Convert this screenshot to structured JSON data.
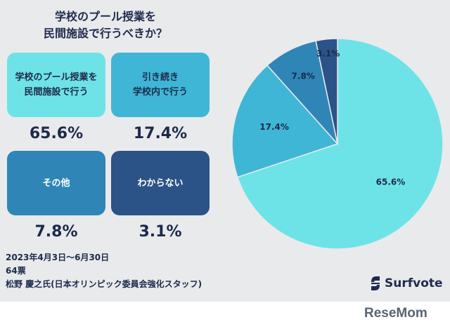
{
  "title_line1": "学校のプール授業を",
  "title_line2": "民間施設で行うべきか？",
  "cards": [
    {
      "label": "学校のプール授業を\n民間施設で行う",
      "pct": "65.6%",
      "bg": "#6ee3e7",
      "fg": "#1c2a4a"
    },
    {
      "label": "引き続き\n学校内で行う",
      "pct": "17.4%",
      "bg": "#3fb6d6",
      "fg": "#1c2a4a"
    },
    {
      "label": "その他",
      "pct": "7.8%",
      "bg": "#2f86b6",
      "fg": "#ffffff"
    },
    {
      "label": "わからない",
      "pct": "3.1%",
      "bg": "#2b5387",
      "fg": "#ffffff"
    }
  ],
  "footer": {
    "period": "2023年4月3日〜6月30日",
    "votes": "64票",
    "author": "松野 慶之氏(日本オリンピック委員会強化スタッフ)"
  },
  "brand": {
    "name": "Surfvote",
    "watermark": "ReseMom"
  },
  "chart_data": {
    "type": "pie",
    "categories": [
      "学校のプール授業を民間施設で行う",
      "引き続き学校内で行う",
      "その他",
      "わからない"
    ],
    "values": [
      65.6,
      17.4,
      7.8,
      3.1
    ],
    "labels": [
      "65.6%",
      "17.4%",
      "7.8%",
      "3.1%"
    ],
    "colors": [
      "#6ee3e7",
      "#3fb6d6",
      "#2f86b6",
      "#2b5387"
    ]
  }
}
